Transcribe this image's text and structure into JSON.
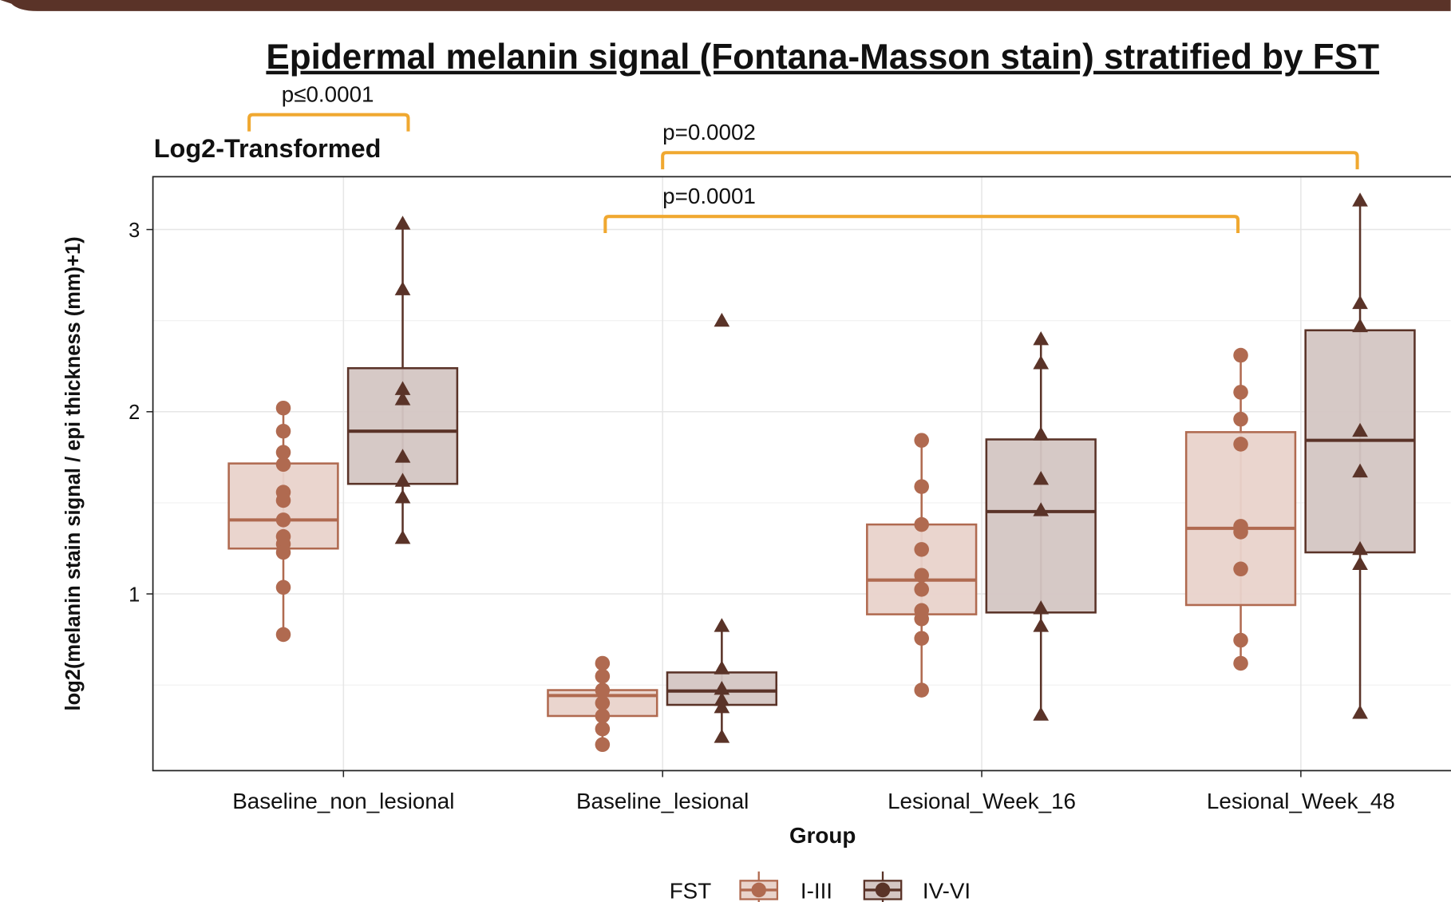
{
  "chart_data": {
    "type": "box",
    "title": "Epidermal melanin signal (Fontana-Masson stain) stratified by FST",
    "subtitle": "Log2-Transformed",
    "y_label": "log2(melanin stain signal / epi thickness (mm)+1)",
    "x_label": "Group",
    "legend_title": "FST",
    "legend_position": "bottom",
    "grid": true,
    "categories": [
      "Baseline_non_lesional",
      "Baseline_lesional",
      "Lesional_Week_16",
      "Lesional_Week_48"
    ],
    "ylim": [
      0.03,
      3.29
    ],
    "yticks": [
      1,
      2,
      3
    ],
    "minor_yticks": [
      0.5,
      1.5,
      2.5
    ],
    "annotations": [
      "p≤0.0001",
      "p=0.0002",
      "p=0.0001"
    ],
    "series": [
      {
        "name": "I-III",
        "color": "#b06a50",
        "fill": "#e9d3cb",
        "marker": "circle",
        "q1": [
          1.249,
          0.33,
          0.888,
          0.939
        ],
        "median": [
          1.406,
          0.442,
          1.076,
          1.36
        ],
        "q3": [
          1.716,
          0.472,
          1.381,
          1.888
        ],
        "whisker_low": [
          0.777,
          0.173,
          0.472,
          0.619
        ],
        "whisker_high": [
          2.02,
          0.619,
          1.843,
          2.31
        ],
        "points": [
          [
            2.02,
            1.893,
            1.777,
            1.711,
            1.558,
            1.513,
            1.406,
            1.315,
            1.274,
            1.228,
            1.036,
            0.777
          ],
          [
            0.619,
            0.548,
            0.472,
            0.401,
            0.33,
            0.259,
            0.173
          ],
          [
            1.843,
            1.589,
            1.381,
            1.244,
            1.102,
            1.025,
            0.909,
            0.863,
            0.756,
            0.472
          ],
          [
            2.31,
            2.107,
            1.959,
            1.822,
            1.371,
            1.34,
            1.137,
            0.746,
            0.619
          ]
        ]
      },
      {
        "name": "IV-VI",
        "color": "#5a3328",
        "fill": "#d4c6c3",
        "marker": "triangle",
        "q1": [
          1.604,
          0.391,
          0.898,
          1.228
        ],
        "median": [
          1.893,
          0.467,
          1.452,
          1.843
        ],
        "q3": [
          2.239,
          0.569,
          1.848,
          2.447
        ],
        "whisker_low": [
          1.305,
          0.213,
          0.335,
          0.345
        ],
        "whisker_high": [
          3.03,
          0.822,
          2.396,
          3.157
        ],
        "points": [
          [
            3.03,
            2.67,
            2.122,
            2.066,
            1.751,
            1.619,
            1.528,
            1.305
          ],
          [
            2.497,
            0.822,
            0.589,
            0.477,
            0.416,
            0.376,
            0.213
          ],
          [
            2.396,
            2.264,
            1.873,
            1.629,
            1.457,
            0.919,
            0.822,
            0.335
          ],
          [
            3.157,
            2.594,
            2.467,
            1.893,
            1.67,
            1.244,
            1.162,
            0.345
          ]
        ]
      }
    ]
  }
}
